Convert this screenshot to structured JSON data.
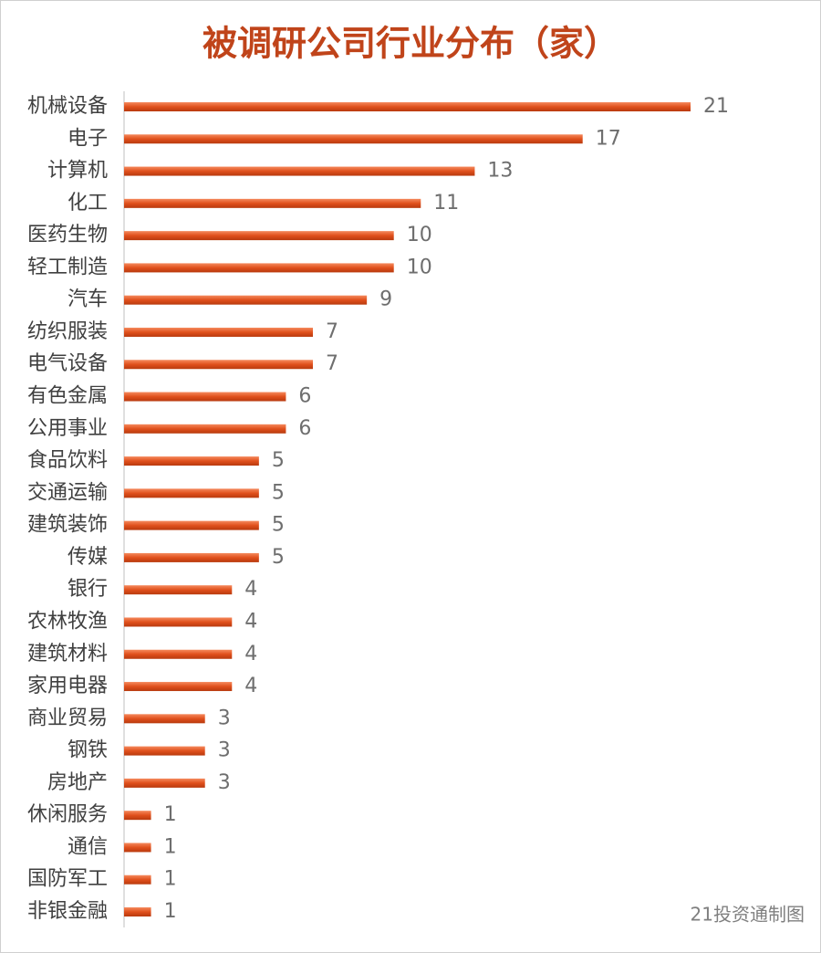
{
  "chart_data": {
    "type": "bar",
    "orientation": "horizontal",
    "title": "被调研公司行业分布（家）",
    "source": "21投资通制图",
    "categories": [
      "机械设备",
      "电子",
      "计算机",
      "化工",
      "医药生物",
      "轻工制造",
      "汽车",
      "纺织服装",
      "电气设备",
      "有色金属",
      "公用事业",
      "食品饮料",
      "交通运输",
      "建筑装饰",
      "传媒",
      "银行",
      "农林牧渔",
      "建筑材料",
      "家用电器",
      "商业贸易",
      "钢铁",
      "房地产",
      "休闲服务",
      "通信",
      "国防军工",
      "非银金融"
    ],
    "values": [
      21,
      17,
      13,
      11,
      10,
      10,
      9,
      7,
      7,
      6,
      6,
      5,
      5,
      5,
      5,
      4,
      4,
      4,
      4,
      3,
      3,
      3,
      1,
      1,
      1,
      1
    ],
    "color": "#e0501c"
  }
}
